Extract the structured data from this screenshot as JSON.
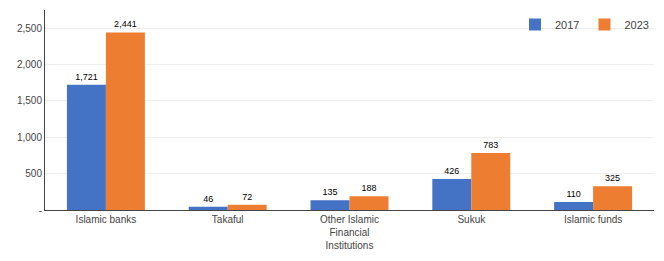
{
  "chart_data": {
    "type": "bar",
    "categories": [
      "Islamic banks",
      "Takaful",
      "Other Islamic Financial Institutions",
      "Sukuk",
      "Islamic funds"
    ],
    "series": [
      {
        "name": "2017",
        "color": "#4472C4",
        "values": [
          1721,
          46,
          135,
          426,
          110
        ],
        "value_labels": [
          "1,721",
          "46",
          "135",
          "426",
          "110"
        ]
      },
      {
        "name": "2023",
        "color": "#ED7D31",
        "values": [
          2441,
          72,
          188,
          783,
          325
        ],
        "value_labels": [
          "2,441",
          "72",
          "188",
          "783",
          "325"
        ]
      }
    ],
    "ylim": [
      0,
      2750
    ],
    "yticks": [
      {
        "value": 0,
        "label": "-"
      },
      500,
      {
        "value": 1000,
        "label": "1,000"
      },
      {
        "value": 1500,
        "label": "1,500"
      },
      {
        "value": 2000,
        "label": "2,000"
      },
      {
        "value": 2500,
        "label": "2,500"
      }
    ],
    "grid": true,
    "legend": "upper right",
    "data_labels": true
  }
}
